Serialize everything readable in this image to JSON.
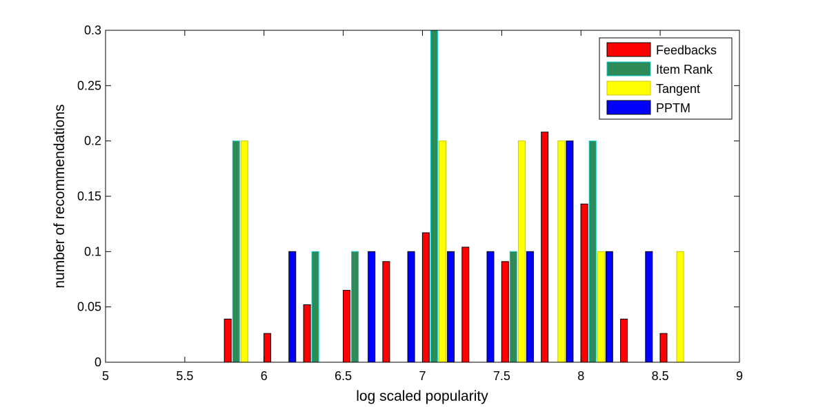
{
  "chart_data": {
    "type": "bar",
    "title": "",
    "xlabel": "log scaled popularity",
    "ylabel": "number of recommendations",
    "xlim": [
      5,
      9
    ],
    "ylim": [
      0,
      0.3
    ],
    "x_ticks": [
      "5",
      "5.5",
      "6",
      "6.5",
      "7",
      "7.5",
      "8",
      "8.5",
      "9"
    ],
    "y_ticks": [
      "0",
      "0.05",
      "0.1",
      "0.15",
      "0.2",
      "0.25",
      "0.3"
    ],
    "grid": false,
    "legend_position": "top-right",
    "bin_centers": [
      5.1,
      5.35,
      5.6,
      5.85,
      6.1,
      6.35,
      6.6,
      6.85,
      7.1,
      7.35,
      7.6,
      7.85,
      8.1,
      8.35,
      8.6,
      8.85
    ],
    "series": [
      {
        "name": "Feedbacks",
        "color": "#ff0000",
        "edge": "#000000",
        "values": [
          0,
          0,
          0,
          0.039,
          0.026,
          0.052,
          0.065,
          0.091,
          0.117,
          0.104,
          0.091,
          0.208,
          0.143,
          0.039,
          0.026,
          0
        ]
      },
      {
        "name": "Item Rank",
        "color": "#2e8b57",
        "edge": "#00ced1",
        "values": [
          0,
          0,
          0,
          0.2,
          0,
          0.1,
          0.1,
          0,
          0.3,
          0,
          0.1,
          0,
          0.2,
          0,
          0,
          0
        ]
      },
      {
        "name": "Tangent",
        "color": "#ffff00",
        "edge": "#c8c800",
        "values": [
          0,
          0,
          0,
          0.2,
          0,
          0,
          0,
          0,
          0.2,
          0,
          0.2,
          0.2,
          0.1,
          0,
          0.1,
          0
        ]
      },
      {
        "name": "PPTM",
        "color": "#0000ff",
        "edge": "#000000",
        "values": [
          0,
          0,
          0,
          0,
          0.1,
          0,
          0.1,
          0.1,
          0.1,
          0.1,
          0.1,
          0.2,
          0.1,
          0.1,
          0,
          0
        ]
      }
    ]
  }
}
